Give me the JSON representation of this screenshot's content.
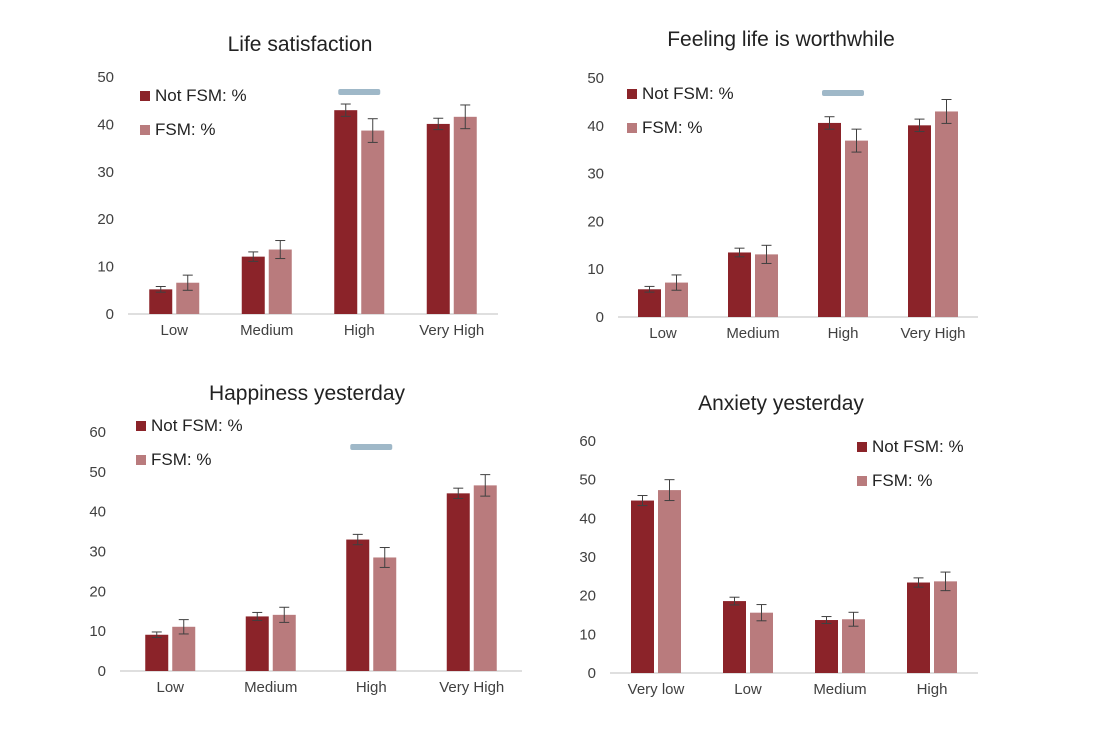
{
  "colors": {
    "not_fsm": "#8B2329",
    "fsm": "#B97B7D",
    "significance": "#9FB8C8",
    "axis": "#BFBFBF",
    "error": "#404040"
  },
  "chart_data": [
    {
      "type": "bar",
      "title": "Life satisfaction",
      "categories": [
        "Low",
        "Medium",
        "High",
        "Very High"
      ],
      "ylim": [
        0,
        50
      ],
      "yticks": [
        0,
        10,
        20,
        30,
        40,
        50
      ],
      "grid": false,
      "legend_position": "top-left",
      "significant_category": "High",
      "series": [
        {
          "name": "Not FSM:  %",
          "color": "#8B2329",
          "values": [
            5.2,
            12.1,
            43.0,
            40.1
          ],
          "error": [
            0.6,
            1.0,
            1.3,
            1.2
          ]
        },
        {
          "name": "FSM:  %",
          "color": "#B97B7D",
          "values": [
            6.6,
            13.6,
            38.7,
            41.6
          ],
          "error": [
            1.6,
            1.9,
            2.5,
            2.5
          ]
        }
      ]
    },
    {
      "type": "bar",
      "title": "Feeling life is worthwhile",
      "categories": [
        "Low",
        "Medium",
        "High",
        "Very High"
      ],
      "ylim": [
        0,
        50
      ],
      "yticks": [
        0,
        10,
        20,
        30,
        40,
        50
      ],
      "grid": false,
      "legend_position": "top-left",
      "significant_category": "High",
      "series": [
        {
          "name": "Not FSM:  %",
          "color": "#8B2329",
          "values": [
            5.8,
            13.5,
            40.6,
            40.1
          ],
          "error": [
            0.6,
            0.9,
            1.3,
            1.3
          ]
        },
        {
          "name": "FSM:  %",
          "color": "#B97B7D",
          "values": [
            7.2,
            13.1,
            36.9,
            43.0
          ],
          "error": [
            1.6,
            1.9,
            2.4,
            2.5
          ]
        }
      ]
    },
    {
      "type": "bar",
      "title": "Happiness yesterday",
      "categories": [
        "Low",
        "Medium",
        "High",
        "Very High"
      ],
      "ylim": [
        0,
        60
      ],
      "yticks": [
        0,
        10,
        20,
        30,
        40,
        50,
        60
      ],
      "grid": false,
      "legend_position": "top-left",
      "significant_category": "High",
      "series": [
        {
          "name": "Not FSM:  %",
          "color": "#8B2329",
          "values": [
            9.1,
            13.7,
            33.0,
            44.6
          ],
          "error": [
            0.7,
            1.0,
            1.3,
            1.3
          ]
        },
        {
          "name": "FSM:  %",
          "color": "#B97B7D",
          "values": [
            11.1,
            14.1,
            28.5,
            46.6
          ],
          "error": [
            1.8,
            1.9,
            2.5,
            2.7
          ]
        }
      ]
    },
    {
      "type": "bar",
      "title": "Anxiety yesterday",
      "categories": [
        "Very low",
        "Low",
        "Medium",
        "High"
      ],
      "ylim": [
        0,
        60
      ],
      "yticks": [
        0,
        10,
        20,
        30,
        40,
        50,
        60
      ],
      "grid": false,
      "legend_position": "top-right",
      "significant_category": "",
      "series": [
        {
          "name": "Not FSM:  %",
          "color": "#8B2329",
          "values": [
            44.6,
            18.6,
            13.7,
            23.4
          ],
          "error": [
            1.3,
            1.0,
            0.9,
            1.2
          ]
        },
        {
          "name": "FSM:  %",
          "color": "#B97B7D",
          "values": [
            47.3,
            15.6,
            13.9,
            23.7
          ],
          "error": [
            2.7,
            2.1,
            1.8,
            2.4
          ]
        }
      ]
    }
  ]
}
